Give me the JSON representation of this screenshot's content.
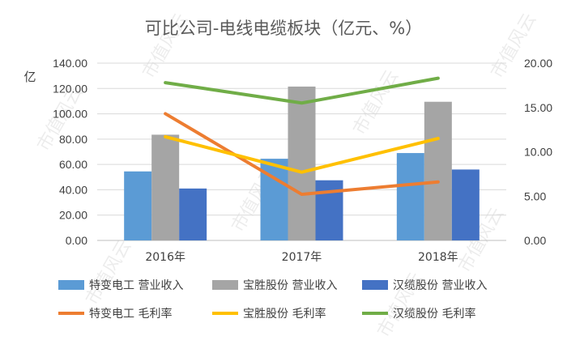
{
  "chart_data": {
    "type": "bar+line",
    "title": "可比公司-电线电缆板块（亿元、%）",
    "y_left_unit": "亿",
    "categories": [
      "2016年",
      "2017年",
      "2018年"
    ],
    "y_left": {
      "ylim": [
        0,
        140
      ],
      "ticks": [
        "0.00",
        "20.00",
        "40.00",
        "60.00",
        "80.00",
        "100.00",
        "120.00",
        "140.00"
      ]
    },
    "y_right": {
      "ylim": [
        0,
        20
      ],
      "ticks": [
        "0.00",
        "5.00",
        "10.00",
        "15.00",
        "20.00"
      ]
    },
    "bar_series": [
      {
        "name": "特变电工 营业收入",
        "color": "#5B9BD5",
        "values": [
          54.5,
          64.5,
          69.0
        ]
      },
      {
        "name": "宝胜股份 营业收入",
        "color": "#A5A5A5",
        "values": [
          83.5,
          121.5,
          109.5
        ]
      },
      {
        "name": "汉缆股份 营业收入",
        "color": "#4472C4",
        "values": [
          41.0,
          47.5,
          56.0
        ]
      }
    ],
    "line_series": [
      {
        "name": "特变电工 毛利率",
        "color": "#ED7D31",
        "values": [
          14.3,
          5.2,
          6.6
        ]
      },
      {
        "name": "宝胜股份 毛利率",
        "color": "#FFC000",
        "values": [
          11.7,
          7.7,
          11.5
        ]
      },
      {
        "name": "汉缆股份 毛利率",
        "color": "#70AD47",
        "values": [
          17.8,
          15.5,
          18.3
        ]
      }
    ],
    "grid": true,
    "legend_position": "bottom"
  },
  "watermark": {
    "text": "市值风云"
  }
}
